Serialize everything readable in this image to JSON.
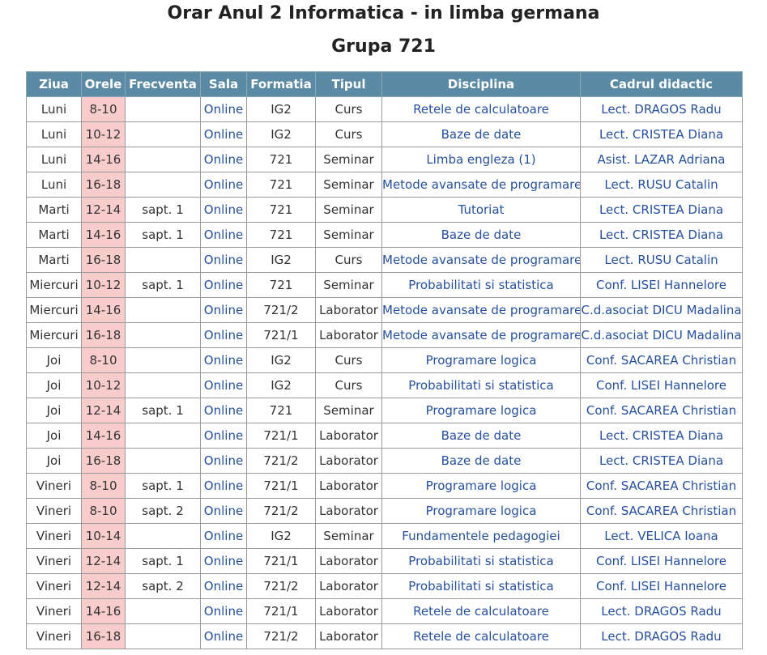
{
  "page": {
    "title": "Orar Anul 2 Informatica - in limba germana",
    "subtitle": "Grupa 721"
  },
  "colors": {
    "header_bg": "#5b8aa4",
    "hours_bg": "#f9cccc",
    "link": "#2650a0"
  },
  "table": {
    "headers": [
      "Ziua",
      "Orele",
      "Frecventa",
      "Sala",
      "Formatia",
      "Tipul",
      "Disciplina",
      "Cadrul didactic"
    ],
    "rows": [
      [
        "Luni",
        "8-10",
        "",
        "Online",
        "IG2",
        "Curs",
        "Retele de calculatoare",
        "Lect. DRAGOS Radu"
      ],
      [
        "Luni",
        "10-12",
        "",
        "Online",
        "IG2",
        "Curs",
        "Baze de date",
        "Lect. CRISTEA Diana"
      ],
      [
        "Luni",
        "14-16",
        "",
        "Online",
        "721",
        "Seminar",
        "Limba engleza (1)",
        "Asist. LAZAR Adriana"
      ],
      [
        "Luni",
        "16-18",
        "",
        "Online",
        "721",
        "Seminar",
        "Metode avansate de programare",
        "Lect. RUSU Catalin"
      ],
      [
        "Marti",
        "12-14",
        "sapt. 1",
        "Online",
        "721",
        "Seminar",
        "Tutoriat",
        "Lect. CRISTEA Diana"
      ],
      [
        "Marti",
        "14-16",
        "sapt. 1",
        "Online",
        "721",
        "Seminar",
        "Baze de date",
        "Lect. CRISTEA Diana"
      ],
      [
        "Marti",
        "16-18",
        "",
        "Online",
        "IG2",
        "Curs",
        "Metode avansate de programare",
        "Lect. RUSU Catalin"
      ],
      [
        "Miercuri",
        "10-12",
        "sapt. 1",
        "Online",
        "721",
        "Seminar",
        "Probabilitati si statistica",
        "Conf. LISEI Hannelore"
      ],
      [
        "Miercuri",
        "14-16",
        "",
        "Online",
        "721/2",
        "Laborator",
        "Metode avansate de programare",
        "C.d.asociat DICU Madalina"
      ],
      [
        "Miercuri",
        "16-18",
        "",
        "Online",
        "721/1",
        "Laborator",
        "Metode avansate de programare",
        "C.d.asociat DICU Madalina"
      ],
      [
        "Joi",
        "8-10",
        "",
        "Online",
        "IG2",
        "Curs",
        "Programare logica",
        "Conf. SACAREA Christian"
      ],
      [
        "Joi",
        "10-12",
        "",
        "Online",
        "IG2",
        "Curs",
        "Probabilitati si statistica",
        "Conf. LISEI Hannelore"
      ],
      [
        "Joi",
        "12-14",
        "sapt. 1",
        "Online",
        "721",
        "Seminar",
        "Programare logica",
        "Conf. SACAREA Christian"
      ],
      [
        "Joi",
        "14-16",
        "",
        "Online",
        "721/1",
        "Laborator",
        "Baze de date",
        "Lect. CRISTEA Diana"
      ],
      [
        "Joi",
        "16-18",
        "",
        "Online",
        "721/2",
        "Laborator",
        "Baze de date",
        "Lect. CRISTEA Diana"
      ],
      [
        "Vineri",
        "8-10",
        "sapt. 1",
        "Online",
        "721/1",
        "Laborator",
        "Programare logica",
        "Conf. SACAREA Christian"
      ],
      [
        "Vineri",
        "8-10",
        "sapt. 2",
        "Online",
        "721/2",
        "Laborator",
        "Programare logica",
        "Conf. SACAREA Christian"
      ],
      [
        "Vineri",
        "10-14",
        "",
        "Online",
        "IG2",
        "Seminar",
        "Fundamentele pedagogiei",
        "Lect. VELICA Ioana"
      ],
      [
        "Vineri",
        "12-14",
        "sapt. 1",
        "Online",
        "721/1",
        "Laborator",
        "Probabilitati si statistica",
        "Conf. LISEI Hannelore"
      ],
      [
        "Vineri",
        "12-14",
        "sapt. 2",
        "Online",
        "721/2",
        "Laborator",
        "Probabilitati si statistica",
        "Conf. LISEI Hannelore"
      ],
      [
        "Vineri",
        "14-16",
        "",
        "Online",
        "721/1",
        "Laborator",
        "Retele de calculatoare",
        "Lect. DRAGOS Radu"
      ],
      [
        "Vineri",
        "16-18",
        "",
        "Online",
        "721/2",
        "Laborator",
        "Retele de calculatoare",
        "Lect. DRAGOS Radu"
      ]
    ]
  }
}
